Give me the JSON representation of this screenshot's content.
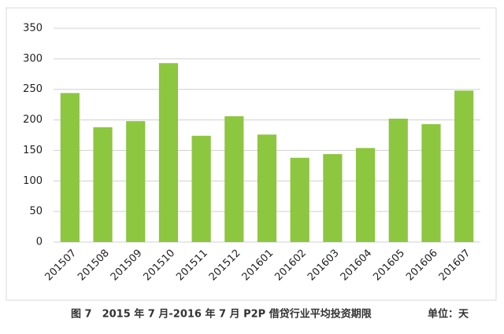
{
  "chart_data": {
    "type": "bar",
    "caption": "图 7　2015 年 7 月-2016 年 7 月 P2P 借贷行业平均投资期限",
    "unit": "单位：天",
    "categories": [
      "201507",
      "201508",
      "201509",
      "201510",
      "201511",
      "201512",
      "201601",
      "201602",
      "201603",
      "201604",
      "201605",
      "201606",
      "201607"
    ],
    "values": [
      244,
      188,
      198,
      293,
      174,
      206,
      176,
      138,
      144,
      154,
      202,
      193,
      248
    ],
    "color": "#8dc63f",
    "ylim": [
      0,
      350
    ],
    "yticks": [
      0,
      50,
      100,
      150,
      200,
      250,
      300,
      350
    ],
    "grid": true
  }
}
